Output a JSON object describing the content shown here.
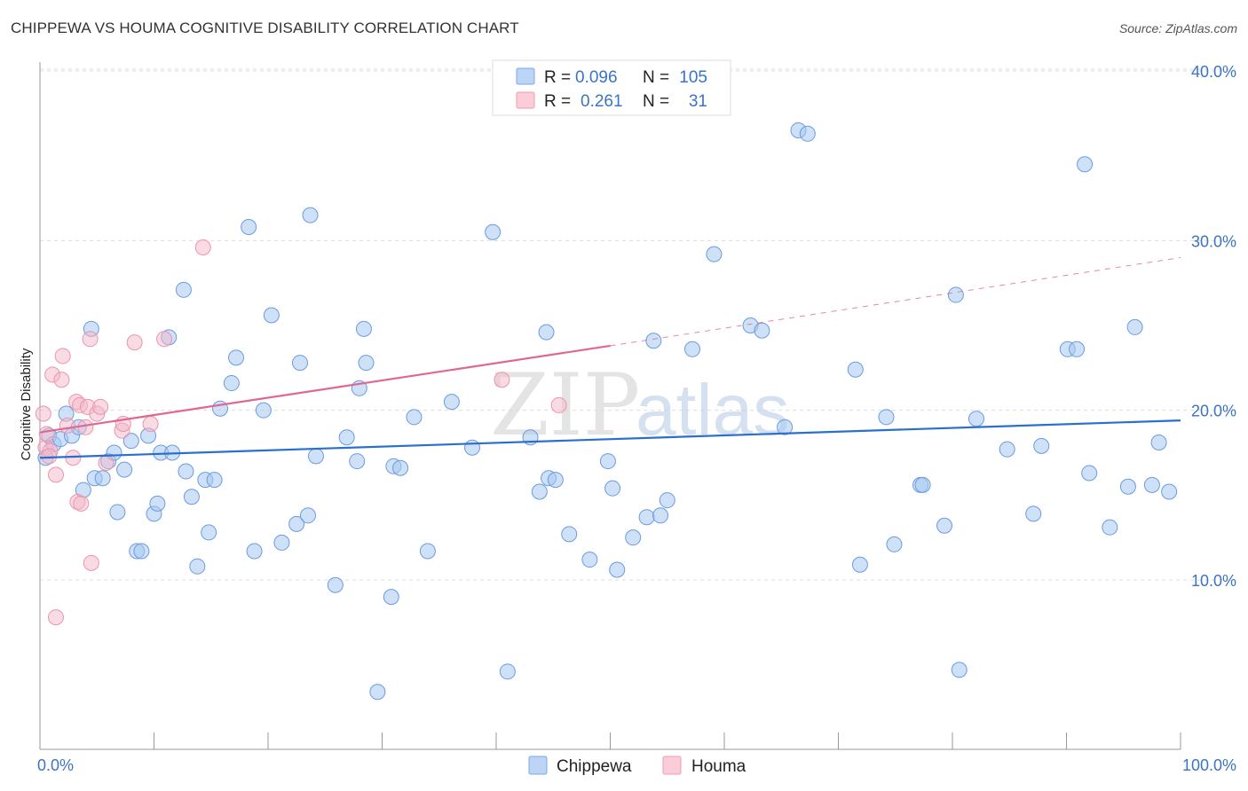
{
  "title": "CHIPPEWA VS HOUMA COGNITIVE DISABILITY CORRELATION CHART",
  "source": "Source: ZipAtlas.com",
  "watermark": {
    "zip": "ZIP",
    "atlas": "atlas"
  },
  "legend_top": [
    {
      "r_label": "R =",
      "r_value": "0.096",
      "n_label": "N =",
      "n_value": "105"
    },
    {
      "r_label": "R =",
      "r_value": "0.261",
      "n_label": "N =",
      "n_value": "31"
    }
  ],
  "chart_data": {
    "type": "scatter",
    "title": "CHIPPEWA VS HOUMA COGNITIVE DISABILITY CORRELATION CHART",
    "xlabel": "",
    "ylabel": "Cognitive Disability",
    "xlim": [
      0,
      100
    ],
    "ylim": [
      0,
      41
    ],
    "x_tick_labels": [
      {
        "value": 0,
        "label": "0.0%"
      },
      {
        "value": 100,
        "label": "100.0%"
      }
    ],
    "y_tick_labels": [
      {
        "value": 10,
        "label": "10.0%"
      },
      {
        "value": 20,
        "label": "20.0%"
      },
      {
        "value": 30,
        "label": "30.0%"
      },
      {
        "value": 40,
        "label": "40.0%"
      }
    ],
    "grid": true,
    "legend": "bottom-center",
    "colors": {
      "chippewa": "#a8c8f0",
      "chippewa_line": "#2a6fcf",
      "houma": "#f4b8ca",
      "houma_line": "#e06890"
    },
    "series": [
      {
        "name": "Chippewa",
        "r": 0.096,
        "n": 105,
        "trend": {
          "x": [
            0,
            100
          ],
          "y": [
            17.2,
            19.4
          ]
        },
        "points": [
          [
            0.5,
            17.2
          ],
          [
            0.8,
            18.5
          ],
          [
            1.2,
            18.0
          ],
          [
            1.8,
            18.3
          ],
          [
            2.3,
            19.8
          ],
          [
            2.8,
            18.5
          ],
          [
            3.4,
            19.0
          ],
          [
            3.8,
            15.3
          ],
          [
            4.5,
            24.8
          ],
          [
            4.8,
            16.0
          ],
          [
            5.5,
            16.0
          ],
          [
            6.0,
            17.0
          ],
          [
            6.5,
            17.5
          ],
          [
            6.8,
            14.0
          ],
          [
            7.4,
            16.5
          ],
          [
            8.0,
            18.2
          ],
          [
            8.5,
            11.7
          ],
          [
            8.9,
            11.7
          ],
          [
            9.5,
            18.5
          ],
          [
            10.0,
            13.9
          ],
          [
            10.3,
            14.5
          ],
          [
            10.6,
            17.5
          ],
          [
            11.6,
            17.5
          ],
          [
            11.3,
            24.3
          ],
          [
            12.6,
            27.1
          ],
          [
            12.8,
            16.4
          ],
          [
            13.3,
            14.9
          ],
          [
            13.8,
            10.8
          ],
          [
            14.5,
            15.9
          ],
          [
            14.8,
            12.8
          ],
          [
            15.3,
            15.9
          ],
          [
            15.8,
            20.1
          ],
          [
            16.8,
            21.6
          ],
          [
            17.2,
            23.1
          ],
          [
            18.3,
            30.8
          ],
          [
            18.8,
            11.7
          ],
          [
            19.6,
            20.0
          ],
          [
            20.3,
            25.6
          ],
          [
            21.2,
            12.2
          ],
          [
            22.5,
            13.3
          ],
          [
            22.8,
            22.8
          ],
          [
            23.5,
            13.8
          ],
          [
            23.7,
            31.5
          ],
          [
            24.2,
            17.3
          ],
          [
            25.9,
            9.7
          ],
          [
            26.9,
            18.4
          ],
          [
            27.8,
            17.0
          ],
          [
            28.0,
            21.3
          ],
          [
            28.6,
            22.8
          ],
          [
            28.4,
            24.8
          ],
          [
            29.6,
            3.4
          ],
          [
            30.8,
            9.0
          ],
          [
            31.0,
            16.7
          ],
          [
            31.6,
            16.6
          ],
          [
            32.8,
            19.6
          ],
          [
            34.0,
            11.7
          ],
          [
            36.1,
            20.5
          ],
          [
            37.9,
            17.8
          ],
          [
            39.7,
            30.5
          ],
          [
            41.0,
            4.6
          ],
          [
            43.0,
            18.4
          ],
          [
            43.8,
            15.2
          ],
          [
            44.6,
            16.0
          ],
          [
            45.2,
            15.9
          ],
          [
            44.4,
            24.6
          ],
          [
            46.4,
            12.7
          ],
          [
            48.2,
            11.2
          ],
          [
            49.8,
            17.0
          ],
          [
            50.2,
            15.4
          ],
          [
            50.6,
            10.6
          ],
          [
            52.0,
            12.5
          ],
          [
            53.2,
            13.7
          ],
          [
            54.4,
            13.8
          ],
          [
            53.8,
            24.1
          ],
          [
            55.0,
            14.7
          ],
          [
            57.2,
            23.6
          ],
          [
            59.1,
            29.2
          ],
          [
            62.3,
            25.0
          ],
          [
            63.3,
            24.7
          ],
          [
            66.5,
            36.5
          ],
          [
            67.3,
            36.3
          ],
          [
            65.3,
            19.0
          ],
          [
            71.5,
            22.4
          ],
          [
            71.9,
            10.9
          ],
          [
            74.2,
            19.6
          ],
          [
            74.9,
            12.1
          ],
          [
            77.2,
            15.6
          ],
          [
            77.4,
            15.6
          ],
          [
            79.3,
            13.2
          ],
          [
            80.3,
            26.8
          ],
          [
            80.6,
            4.7
          ],
          [
            82.1,
            19.5
          ],
          [
            84.8,
            17.7
          ],
          [
            87.1,
            13.9
          ],
          [
            87.8,
            17.9
          ],
          [
            90.1,
            23.6
          ],
          [
            90.9,
            23.6
          ],
          [
            91.6,
            34.5
          ],
          [
            92.0,
            16.3
          ],
          [
            93.8,
            13.1
          ],
          [
            95.4,
            15.5
          ],
          [
            96.0,
            24.9
          ],
          [
            97.5,
            15.6
          ],
          [
            98.1,
            18.1
          ],
          [
            99.0,
            15.2
          ]
        ]
      },
      {
        "name": "Houma",
        "r": 0.261,
        "n": 31,
        "trend": {
          "x": [
            0,
            50
          ],
          "y": [
            18.7,
            23.8
          ],
          "dashed_to": {
            "x": 100,
            "y": 29.0
          }
        },
        "points": [
          [
            0.3,
            19.8
          ],
          [
            0.5,
            17.8
          ],
          [
            0.9,
            17.6
          ],
          [
            1.1,
            22.1
          ],
          [
            1.4,
            16.2
          ],
          [
            1.9,
            21.8
          ],
          [
            2.0,
            23.2
          ],
          [
            2.4,
            19.1
          ],
          [
            2.9,
            17.2
          ],
          [
            3.2,
            20.5
          ],
          [
            3.5,
            20.3
          ],
          [
            3.3,
            14.6
          ],
          [
            3.6,
            14.5
          ],
          [
            4.0,
            19.0
          ],
          [
            4.2,
            20.2
          ],
          [
            4.5,
            11.0
          ],
          [
            4.4,
            24.2
          ],
          [
            5.0,
            19.8
          ],
          [
            5.3,
            20.2
          ],
          [
            5.8,
            16.9
          ],
          [
            7.2,
            18.8
          ],
          [
            7.3,
            19.2
          ],
          [
            8.3,
            24.0
          ],
          [
            9.7,
            19.2
          ],
          [
            10.9,
            24.2
          ],
          [
            14.3,
            29.6
          ],
          [
            1.4,
            7.8
          ],
          [
            40.5,
            21.8
          ],
          [
            45.5,
            20.3
          ],
          [
            0.6,
            18.6
          ],
          [
            0.8,
            17.3
          ]
        ]
      }
    ]
  }
}
